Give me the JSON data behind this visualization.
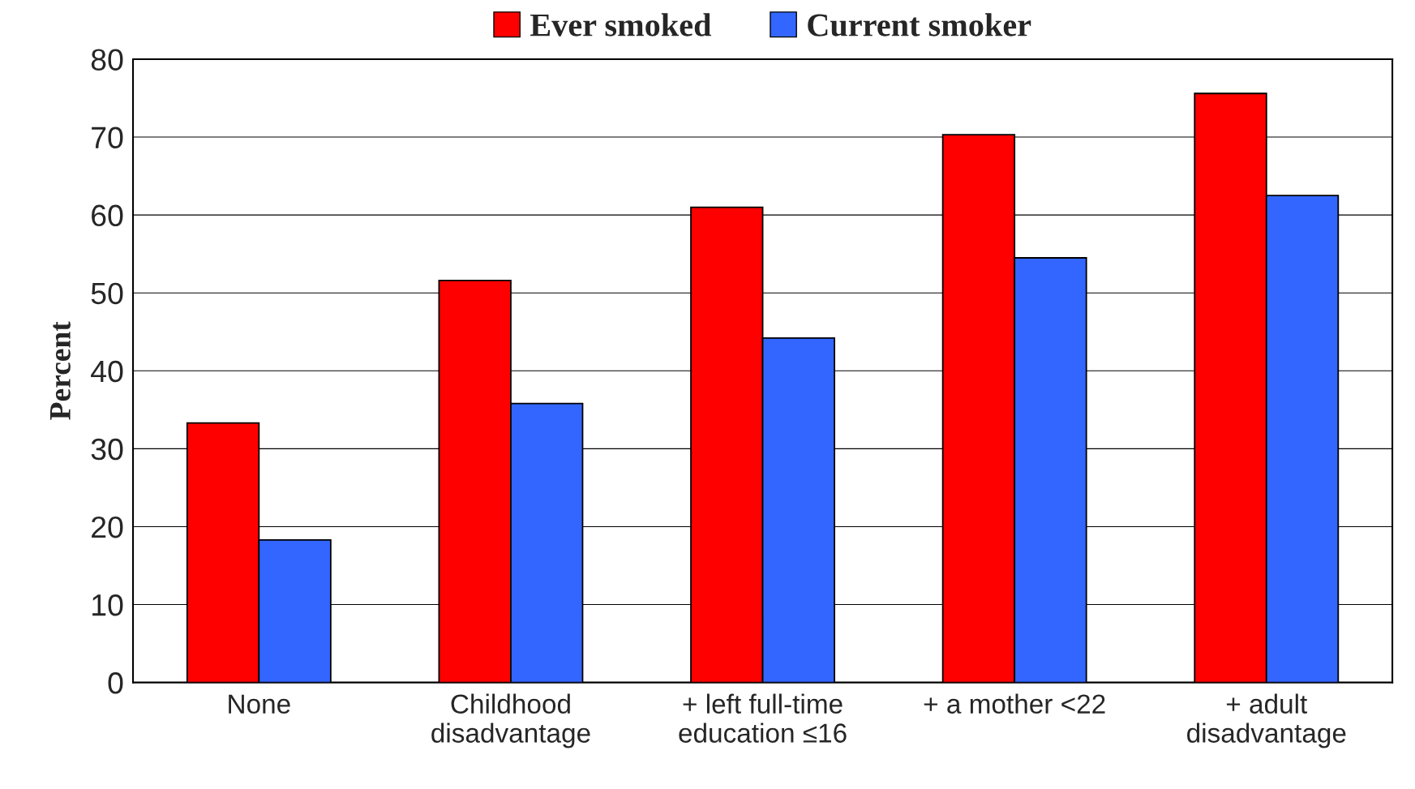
{
  "chart_data": {
    "type": "bar",
    "ylabel": "Percent",
    "categories": [
      "None",
      "Childhood\ndisadvantage",
      "+ left full-time\neducation ≤16",
      "+ a mother <22",
      "+ adult\ndisadvantage"
    ],
    "series": [
      {
        "name": "Ever smoked",
        "color": "#ff0000",
        "values": [
          33.3,
          51.6,
          61.0,
          70.3,
          75.6
        ]
      },
      {
        "name": "Current smoker",
        "color": "#3366ff",
        "values": [
          18.3,
          35.8,
          44.2,
          54.5,
          62.5
        ]
      }
    ],
    "ylim": [
      0,
      80
    ],
    "yticks": [
      0,
      10,
      20,
      30,
      40,
      50,
      60,
      70,
      80
    ],
    "grid": "y",
    "legend": "top"
  }
}
